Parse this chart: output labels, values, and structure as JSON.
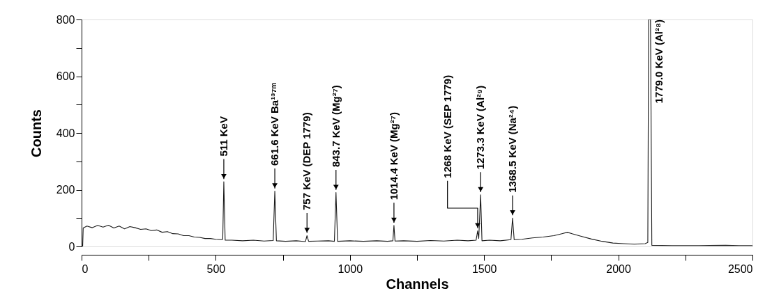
{
  "chart_data": {
    "type": "line",
    "xlabel": "Channels",
    "ylabel": "Counts",
    "x": [
      0,
      4,
      6,
      20,
      40,
      60,
      80,
      100,
      120,
      140,
      160,
      180,
      200,
      220,
      240,
      260,
      280,
      300,
      320,
      340,
      360,
      380,
      400,
      420,
      440,
      460,
      480,
      500,
      520,
      526,
      530,
      535,
      560,
      600,
      640,
      680,
      714,
      720,
      726,
      760,
      800,
      834,
      840,
      846,
      880,
      920,
      942,
      948,
      954,
      1000,
      1050,
      1100,
      1140,
      1160,
      1164,
      1168,
      1200,
      1250,
      1300,
      1350,
      1400,
      1440,
      1470,
      1476,
      1480,
      1487,
      1492,
      1520,
      1560,
      1600,
      1606,
      1612,
      1640,
      1680,
      1720,
      1760,
      1790,
      1810,
      1830,
      1860,
      1900,
      1940,
      1980,
      2020,
      2060,
      2100,
      2110,
      2113,
      2120,
      2125,
      2200,
      2300,
      2400,
      2450,
      2500
    ],
    "series": [
      {
        "color": "#1a1a1a",
        "values": [
          0,
          0,
          65,
          72,
          66,
          74,
          68,
          75,
          65,
          72,
          62,
          70,
          66,
          60,
          62,
          56,
          58,
          50,
          52,
          45,
          44,
          38,
          38,
          33,
          32,
          28,
          28,
          25,
          24,
          25,
          228,
          22,
          22,
          20,
          22,
          19,
          21,
          195,
          20,
          18,
          20,
          17,
          38,
          18,
          19,
          20,
          18,
          190,
          18,
          20,
          18,
          20,
          18,
          20,
          74,
          19,
          20,
          18,
          21,
          19,
          22,
          20,
          22,
          55,
          28,
          182,
          20,
          22,
          20,
          24,
          100,
          24,
          25,
          30,
          33,
          38,
          45,
          50,
          44,
          36,
          26,
          18,
          12,
          10,
          8,
          10,
          14,
          800,
          800,
          4,
          3,
          3,
          4,
          3,
          3
        ]
      }
    ],
    "xlim": [
      0,
      2500
    ],
    "ylim": [
      0,
      800
    ],
    "xticks": [
      0,
      {
        "value": 250,
        "label": null
      },
      500,
      {
        "value": 750,
        "label": null
      },
      1000,
      {
        "value": 1250,
        "label": null
      },
      1500,
      {
        "value": 1750,
        "label": null
      },
      2000,
      {
        "value": 2250,
        "label": null
      },
      2500
    ],
    "yticks": [
      0,
      {
        "value": 100,
        "label": null
      },
      200,
      {
        "value": 300,
        "label": null
      },
      400,
      {
        "value": 500,
        "label": null
      },
      600,
      {
        "value": 700,
        "label": null
      },
      800
    ],
    "grid": false,
    "marker": "none",
    "line_style": "solid",
    "annotations": [
      {
        "text": "511 KeV",
        "x": 530,
        "y": 228
      },
      {
        "text": "661.6 KeV Ba¹³⁷ᵐ",
        "x": 720,
        "y": 195
      },
      {
        "text": "757 KeV (DEP 1779)",
        "x": 840,
        "y": 38
      },
      {
        "text": "843.7 KeV (Mg²⁷)",
        "x": 948,
        "y": 190
      },
      {
        "text": "1014.4 KeV (Mg²⁷)",
        "x": 1164,
        "y": 74
      },
      {
        "text": "1268 KeV (SEP 1779)",
        "x": 1476,
        "y": 55
      },
      {
        "text": "1273.3 KeV (Al²⁹)",
        "x": 1487,
        "y": 182
      },
      {
        "text": "1368.5 KeV (Na²⁴)",
        "x": 1606,
        "y": 100
      },
      {
        "text": "1779.0 KeV (Al²⁸)",
        "x": 2115,
        "y": 800
      }
    ]
  }
}
